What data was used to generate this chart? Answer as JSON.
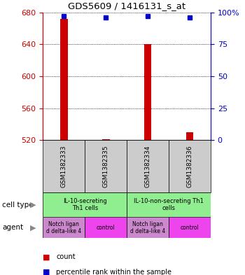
{
  "title": "GDS5609 / 1416131_s_at",
  "samples": [
    "GSM1382333",
    "GSM1382335",
    "GSM1382334",
    "GSM1382336"
  ],
  "counts": [
    672,
    521,
    640,
    530
  ],
  "percentiles": [
    97,
    96,
    97,
    96
  ],
  "ylim": [
    520,
    680
  ],
  "yticks": [
    520,
    560,
    600,
    640,
    680
  ],
  "right_yticks": [
    0,
    25,
    50,
    75,
    100
  ],
  "bar_color": "#cc0000",
  "dot_color": "#0000cc",
  "bar_width": 0.18,
  "cell_types": [
    {
      "label": "IL-10-secreting\nTh1 cells",
      "span": [
        0,
        2
      ],
      "color": "#90ee90"
    },
    {
      "label": "IL-10-non-secreting Th1\ncells",
      "span": [
        2,
        4
      ],
      "color": "#90ee90"
    }
  ],
  "agents": [
    {
      "label": "Notch ligan\nd delta-like 4",
      "span": [
        0,
        1
      ],
      "color": "#cc88cc"
    },
    {
      "label": "control",
      "span": [
        1,
        2
      ],
      "color": "#ee44ee"
    },
    {
      "label": "Notch ligan\nd delta-like 4",
      "span": [
        2,
        3
      ],
      "color": "#cc88cc"
    },
    {
      "label": "control",
      "span": [
        3,
        4
      ],
      "color": "#ee44ee"
    }
  ],
  "xlabel_cell_type": "cell type",
  "xlabel_agent": "agent",
  "legend_count": "count",
  "legend_percentile": "percentile rank within the sample",
  "left_axis_color": "#cc0000",
  "right_axis_color": "#0000cc",
  "sample_box_color": "#cccccc",
  "grid_color": "#000000"
}
